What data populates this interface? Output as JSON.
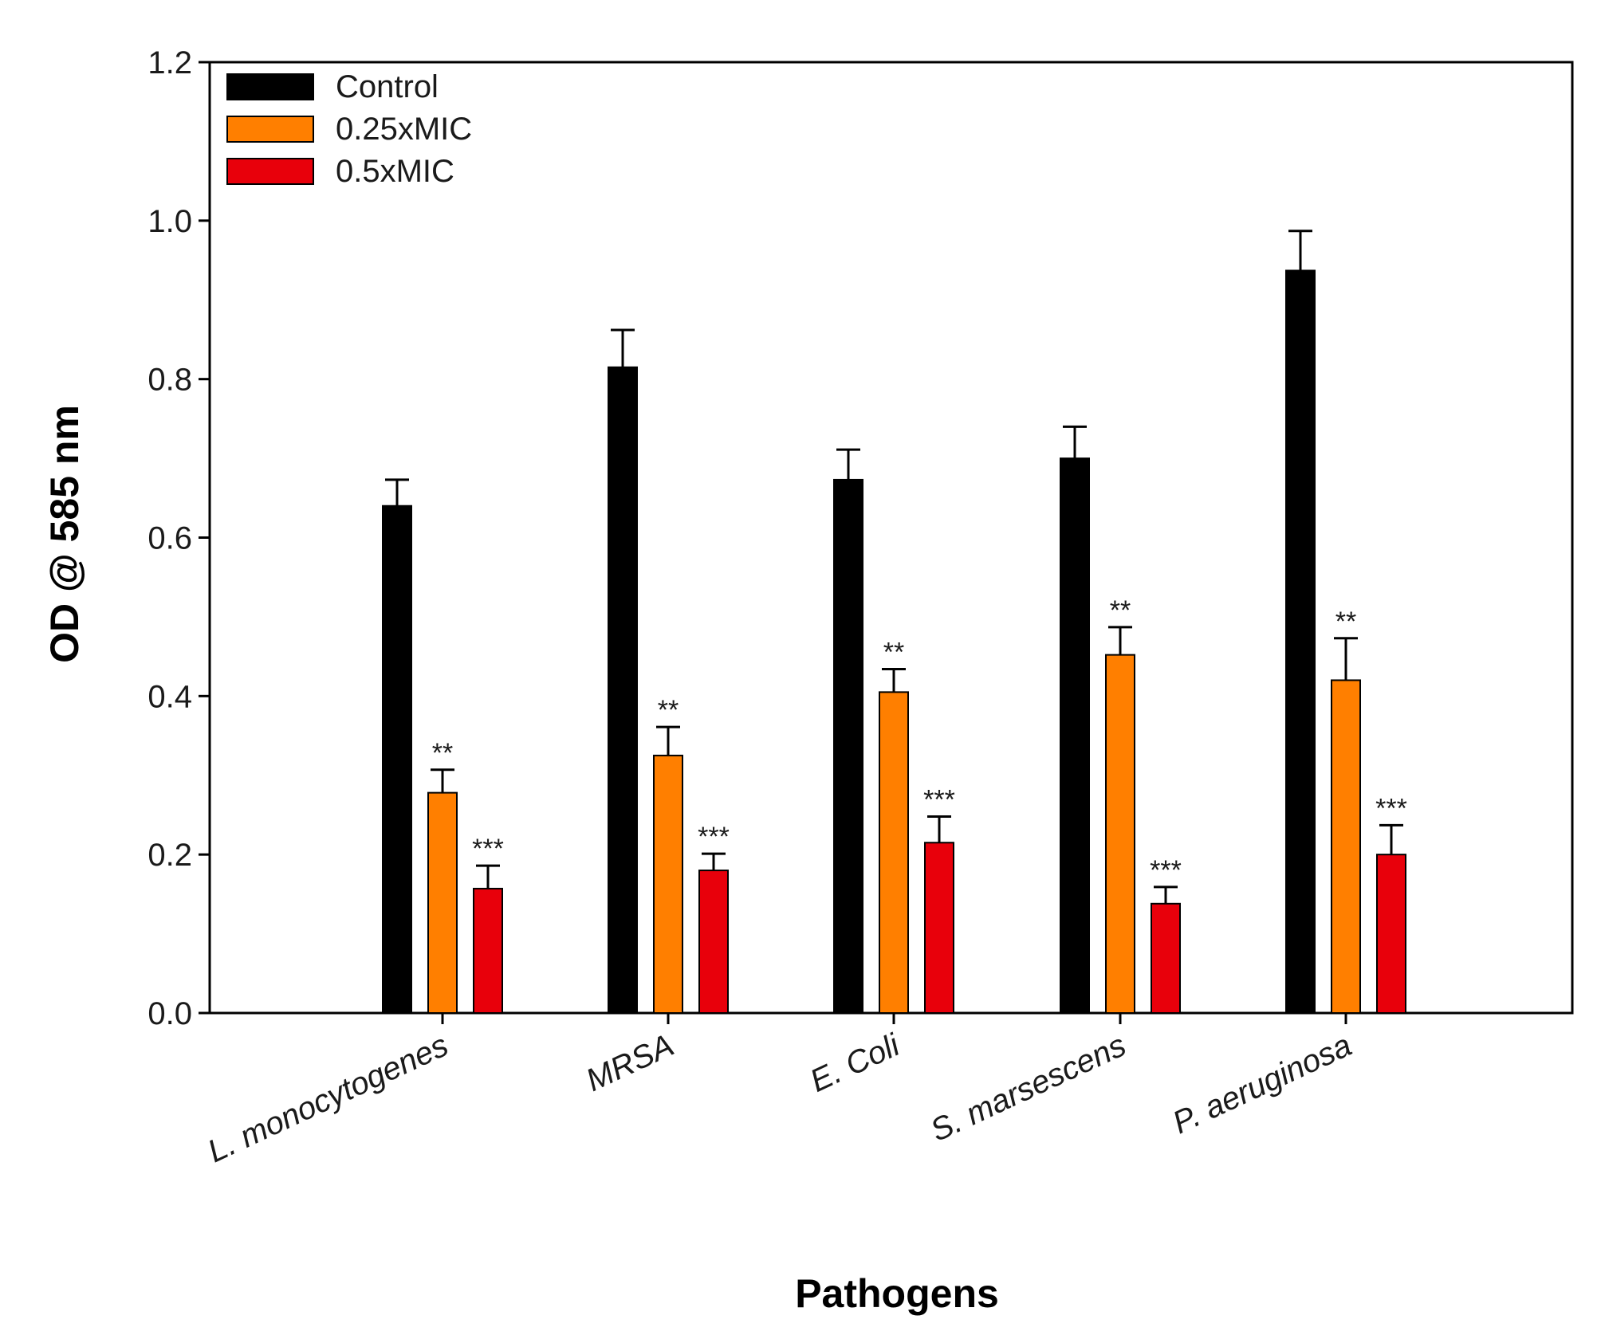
{
  "chart_data": {
    "type": "bar",
    "title": "",
    "xlabel": "Pathogens",
    "ylabel": "OD @ 585 nm",
    "ylim": [
      0,
      1.2
    ],
    "yticks": [
      "0.0",
      "0.2",
      "0.4",
      "0.6",
      "0.8",
      "1.0",
      "1.2"
    ],
    "grid": false,
    "legend_position": "top-left",
    "categories": [
      "L. monocytogenes",
      "MRSA",
      "E. Coli",
      "S. marsescens",
      "P. aeruginosa"
    ],
    "series": [
      {
        "name": "Control",
        "color": "#000000",
        "values": [
          0.64,
          0.815,
          0.673,
          0.7,
          0.937
        ],
        "errors": [
          0.033,
          0.047,
          0.038,
          0.04,
          0.05
        ],
        "annotations": [
          "",
          "",
          "",
          "",
          ""
        ]
      },
      {
        "name": "0.25xMIC",
        "color": "#FF7F00",
        "values": [
          0.278,
          0.325,
          0.405,
          0.452,
          0.42
        ],
        "errors": [
          0.029,
          0.036,
          0.029,
          0.035,
          0.053
        ],
        "annotations": [
          "**",
          "**",
          "**",
          "**",
          "**"
        ]
      },
      {
        "name": "0.5xMIC",
        "color": "#E8000B",
        "values": [
          0.157,
          0.18,
          0.215,
          0.138,
          0.2
        ],
        "errors": [
          0.029,
          0.021,
          0.033,
          0.021,
          0.037
        ],
        "annotations": [
          "***",
          "***",
          "***",
          "***",
          "***"
        ]
      }
    ]
  }
}
